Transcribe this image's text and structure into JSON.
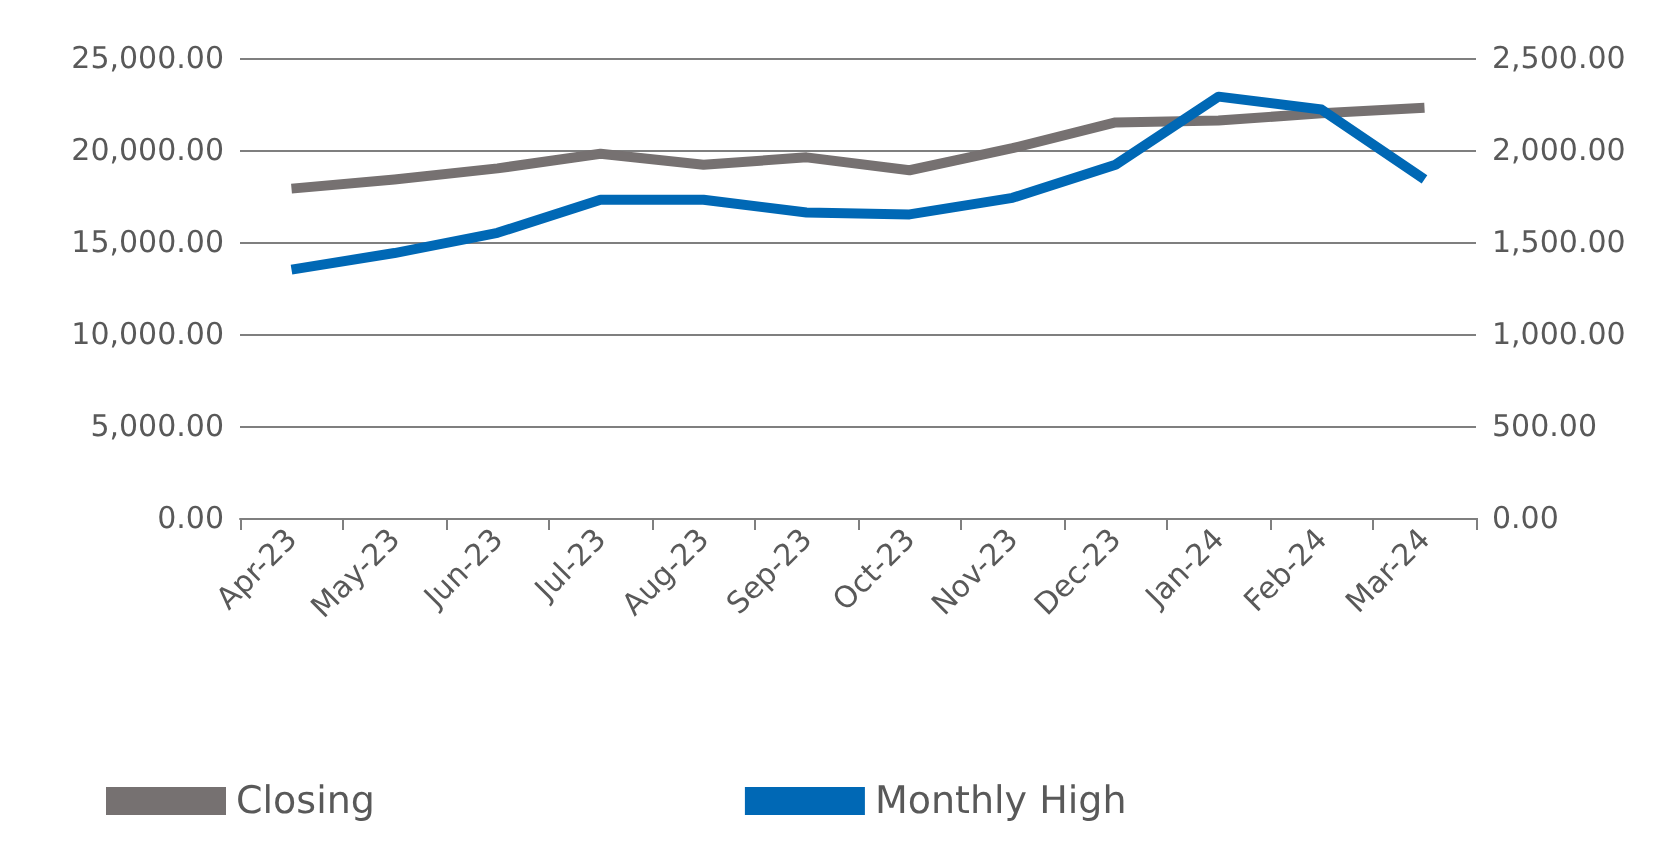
{
  "chart_data": {
    "type": "line",
    "categories": [
      "Apr-23",
      "May-23",
      "Jun-23",
      "Jul-23",
      "Aug-23",
      "Sep-23",
      "Oct-23",
      "Nov-23",
      "Dec-23",
      "Jan-24",
      "Feb-24",
      "Mar-24"
    ],
    "series": [
      {
        "name": "Closing",
        "color": "#767171",
        "values": [
          17900,
          18400,
          19000,
          19800,
          19200,
          19600,
          18900,
          20100,
          21500,
          21600,
          22000,
          22300
        ]
      },
      {
        "name": "Monthly High",
        "color": "#0068b5",
        "axis": "y2",
        "values": [
          1350,
          1440,
          1550,
          1730,
          1730,
          1660,
          1650,
          1740,
          1920,
          2290,
          2220,
          1840
        ]
      }
    ],
    "ylim": [
      0,
      25000
    ],
    "yticks": [
      {
        "value": 0,
        "label": "0.00"
      },
      {
        "value": 5000,
        "label": "5,000.00"
      },
      {
        "value": 10000,
        "label": "10,000.00"
      },
      {
        "value": 15000,
        "label": "15,000.00"
      },
      {
        "value": 20000,
        "label": "20,000.00"
      },
      {
        "value": 25000,
        "label": "25,000.00"
      }
    ],
    "y2lim": [
      0,
      2500
    ],
    "y2ticks": [
      {
        "value": 0,
        "label": "0.00"
      },
      {
        "value": 500,
        "label": "500.00"
      },
      {
        "value": 1000,
        "label": "1,000.00"
      },
      {
        "value": 1500,
        "label": "1,500.00"
      },
      {
        "value": 2000,
        "label": "2,000.00"
      },
      {
        "value": 2500,
        "label": "2,500.00"
      }
    ],
    "grid": "y",
    "legend": "bottom",
    "marker": "none",
    "line_style": "solid"
  }
}
